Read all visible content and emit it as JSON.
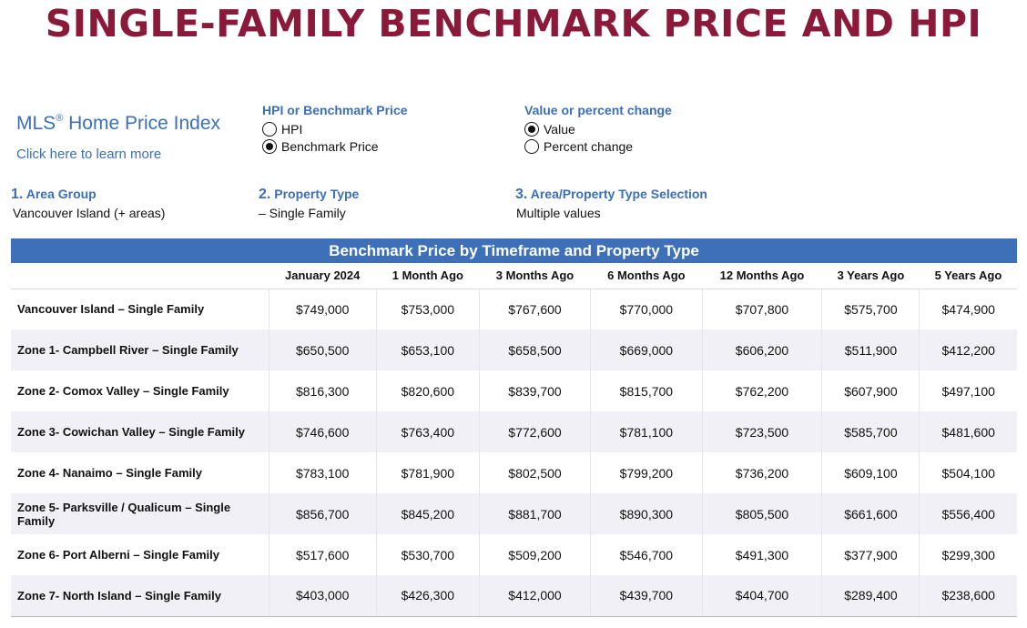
{
  "title": "SINGLE-FAMILY BENCHMARK PRICE AND HPI",
  "mls": {
    "title": "MLS",
    "reg": "®",
    "title_rest": " Home Price Index",
    "learn_more": "Click here to learn more"
  },
  "hpi_group": {
    "title": "HPI or Benchmark Price",
    "options": [
      {
        "label": "HPI",
        "selected": false
      },
      {
        "label": "Benchmark Price",
        "selected": true
      }
    ]
  },
  "value_group": {
    "title": "Value or percent change",
    "options": [
      {
        "label": "Value",
        "selected": true
      },
      {
        "label": "Percent change",
        "selected": false
      }
    ]
  },
  "filters": [
    {
      "num": "1.",
      "title": "Area Group",
      "value": "Vancouver Island (+ areas)"
    },
    {
      "num": "2.",
      "title": "Property Type",
      "value": "– Single Family"
    },
    {
      "num": "3.",
      "title": "Area/Property Type Selection",
      "value": "Multiple values"
    }
  ],
  "table": {
    "banner": "Benchmark Price by Timeframe and Property Type",
    "columns": [
      "January 2024",
      "1 Month Ago",
      "3 Months Ago",
      "6 Months Ago",
      "12 Months Ago",
      "3 Years Ago",
      "5 Years Ago"
    ],
    "rows": [
      {
        "label": "Vancouver Island – Single Family",
        "values": [
          "$749,000",
          "$753,000",
          "$767,600",
          "$770,000",
          "$707,800",
          "$575,700",
          "$474,900"
        ]
      },
      {
        "label": "Zone 1- Campbell River – Single Family",
        "values": [
          "$650,500",
          "$653,100",
          "$658,500",
          "$669,000",
          "$606,200",
          "$511,900",
          "$412,200"
        ]
      },
      {
        "label": "Zone 2- Comox Valley – Single Family",
        "values": [
          "$816,300",
          "$820,600",
          "$839,700",
          "$815,700",
          "$762,200",
          "$607,900",
          "$497,100"
        ]
      },
      {
        "label": "Zone 3- Cowichan Valley – Single Family",
        "values": [
          "$746,600",
          "$763,400",
          "$772,600",
          "$781,100",
          "$723,500",
          "$585,700",
          "$481,600"
        ]
      },
      {
        "label": "Zone 4- Nanaimo – Single Family",
        "values": [
          "$783,100",
          "$781,900",
          "$802,500",
          "$799,200",
          "$736,200",
          "$609,100",
          "$504,100"
        ]
      },
      {
        "label": "Zone 5- Parksville / Qualicum – Single Family",
        "values": [
          "$856,700",
          "$845,200",
          "$881,700",
          "$890,300",
          "$805,500",
          "$661,600",
          "$556,400"
        ]
      },
      {
        "label": "Zone 6- Port Alberni – Single Family",
        "values": [
          "$517,600",
          "$530,700",
          "$509,200",
          "$546,700",
          "$491,300",
          "$377,900",
          "$299,300"
        ]
      },
      {
        "label": "Zone 7- North Island – Single Family",
        "values": [
          "$403,000",
          "$426,300",
          "$412,000",
          "$439,700",
          "$404,700",
          "$289,400",
          "$238,600"
        ]
      }
    ]
  }
}
